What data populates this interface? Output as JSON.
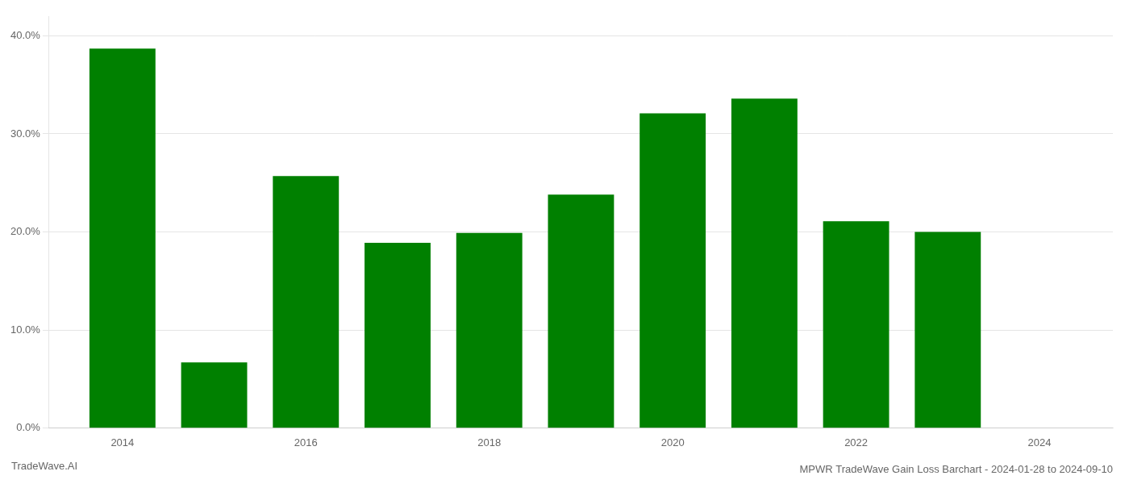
{
  "chart_data": {
    "type": "bar",
    "title": "MPWR TradeWave Gain Loss Barchart - 2024-01-28 to 2024-09-10",
    "annotations": [
      "TradeWave.AI"
    ],
    "x": [
      2014,
      2015,
      2016,
      2017,
      2018,
      2019,
      2020,
      2021,
      2022,
      2023
    ],
    "values": [
      0.387,
      0.067,
      0.257,
      0.189,
      0.199,
      0.238,
      0.321,
      0.336,
      0.211,
      0.2
    ],
    "color": "#008000",
    "xlim": [
      2013.2,
      2024.8
    ],
    "xticks": [
      2014,
      2016,
      2018,
      2020,
      2022,
      2024
    ],
    "ylim": [
      0,
      0.42
    ],
    "yticks": [
      {
        "value": 0.0,
        "label": "0.0%"
      },
      {
        "value": 0.1,
        "label": "10.0%"
      },
      {
        "value": 0.2,
        "label": "20.0%"
      },
      {
        "value": 0.3,
        "label": "30.0%"
      },
      {
        "value": 0.4,
        "label": "40.0%"
      }
    ],
    "grid": true
  }
}
